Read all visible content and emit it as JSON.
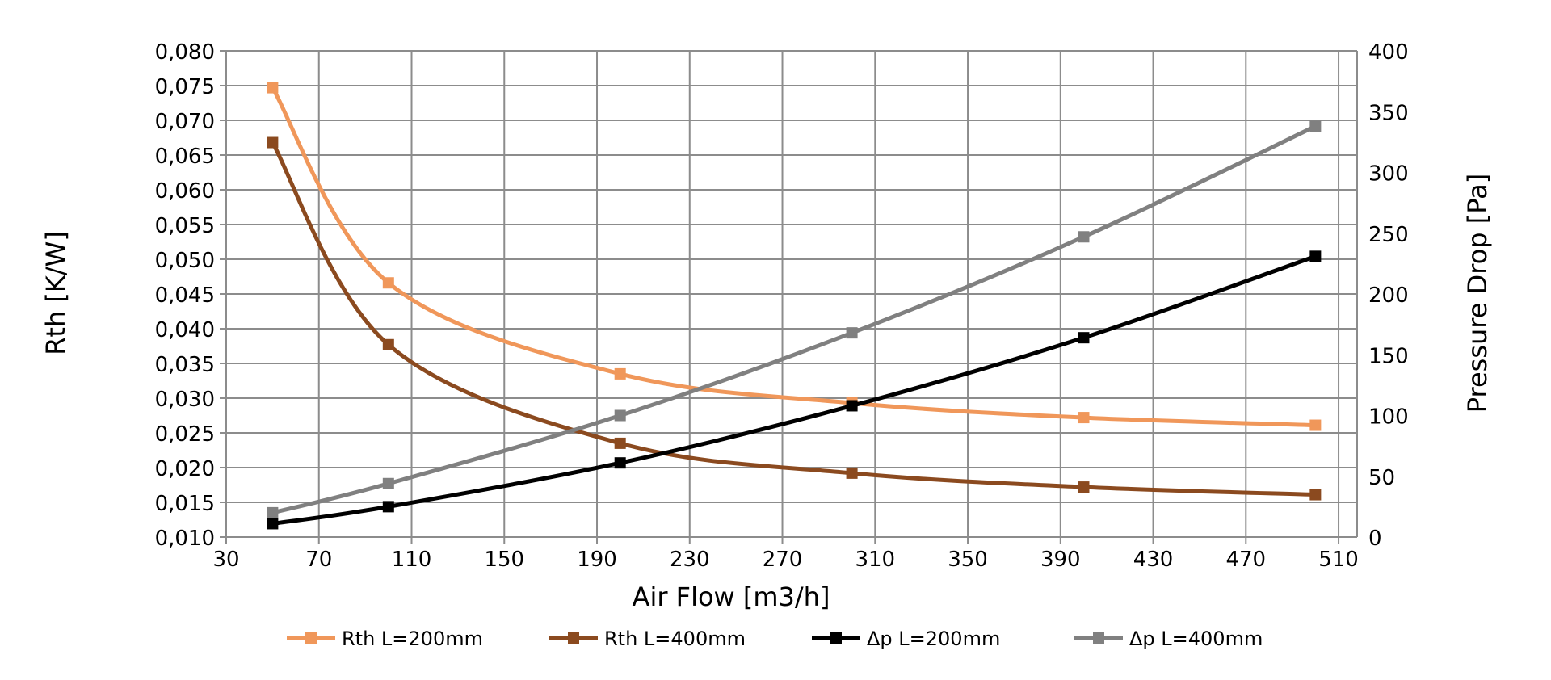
{
  "chart_data": {
    "type": "line",
    "title": "",
    "xlabel": "Air Flow [m3/h]",
    "ylabel": "Rth [K/W]",
    "y2label": "Pressure Drop [Pa]",
    "xlim": [
      30,
      518
    ],
    "ylim": [
      0.01,
      0.08
    ],
    "y2lim": [
      0,
      400
    ],
    "grid": true,
    "legend_position": "bottom",
    "x_ticks": [
      "30",
      "70",
      "110",
      "150",
      "190",
      "230",
      "270",
      "310",
      "350",
      "390",
      "430",
      "470",
      "510"
    ],
    "y_ticks": [
      "0,010",
      "0,015",
      "0,020",
      "0,025",
      "0,030",
      "0,035",
      "0,040",
      "0,045",
      "0,050",
      "0,055",
      "0,060",
      "0,065",
      "0,070",
      "0,075",
      "0,080"
    ],
    "y2_ticks": [
      "0",
      "50",
      "100",
      "150",
      "200",
      "250",
      "300",
      "350",
      "400"
    ],
    "x": [
      50,
      100,
      200,
      300,
      400,
      500
    ],
    "series": [
      {
        "name": "Rth L=200mm",
        "axis": "left",
        "color": "#F0975A",
        "values": [
          0.0747,
          0.0466,
          0.0335,
          0.0293,
          0.0272,
          0.0261
        ]
      },
      {
        "name": "Rth L=400mm",
        "axis": "left",
        "color": "#8B4A1F",
        "values": [
          0.0668,
          0.0377,
          0.0235,
          0.0192,
          0.0172,
          0.0161
        ]
      },
      {
        "name": "Δp L=200mm",
        "axis": "right",
        "color": "#000000",
        "values": [
          11,
          25,
          61,
          108,
          164,
          231
        ]
      },
      {
        "name": "Δp L=400mm",
        "axis": "right",
        "color": "#808080",
        "values": [
          20,
          44,
          100,
          168,
          247,
          338
        ]
      }
    ]
  }
}
